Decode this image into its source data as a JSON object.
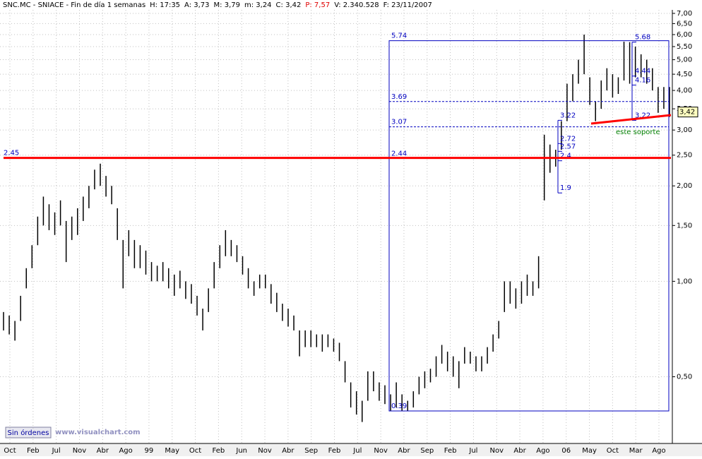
{
  "chart_data": {
    "type": "ohlc",
    "log_scale": true,
    "grid": true,
    "header": [
      "SNC.MC - SNIACE - Fin de día 1 semanas",
      "H: 17:35",
      "A: 3,73",
      "M: 3,79",
      "m: 3,24",
      "C: 3,42",
      "P: 7,57",
      "V: 2.340.528",
      "F: 23/11/2007"
    ],
    "categories": [
      "Oct",
      "Feb",
      "Jul",
      "Nov",
      "Abr",
      "Ago",
      "99",
      "May",
      "Oct",
      "Feb",
      "Jun",
      "Nov",
      "Abr",
      "Sep",
      "Feb",
      "Jul",
      "Nov",
      "Abr",
      "Sep",
      "Feb",
      "Jul",
      "Nov",
      "Abr",
      "Ago",
      "06",
      "May",
      "Oct",
      "Mar",
      "Ago"
    ],
    "high": [
      0.8,
      0.78,
      0.75,
      0.9,
      1.1,
      1.3,
      1.6,
      1.85,
      1.75,
      1.65,
      1.8,
      1.55,
      1.6,
      1.7,
      1.85,
      2.0,
      2.25,
      2.35,
      2.15,
      2.0,
      1.7,
      1.35,
      1.45,
      1.35,
      1.3,
      1.25,
      1.15,
      1.12,
      1.15,
      1.1,
      1.05,
      1.08,
      1.0,
      0.98,
      0.9,
      0.82,
      0.95,
      1.15,
      1.3,
      1.45,
      1.35,
      1.3,
      1.2,
      1.1,
      1.0,
      1.05,
      1.05,
      0.98,
      0.92,
      0.85,
      0.82,
      0.78,
      0.7,
      0.7,
      0.7,
      0.68,
      0.68,
      0.68,
      0.66,
      0.64,
      0.56,
      0.48,
      0.45,
      0.42,
      0.52,
      0.52,
      0.48,
      0.47,
      0.44,
      0.48,
      0.44,
      0.42,
      0.45,
      0.5,
      0.52,
      0.53,
      0.58,
      0.63,
      0.6,
      0.58,
      0.56,
      0.62,
      0.6,
      0.58,
      0.58,
      0.62,
      0.68,
      0.75,
      1.0,
      1.0,
      0.95,
      1.0,
      1.05,
      1.0,
      1.2,
      2.9,
      2.7,
      2.6,
      3.2,
      4.2,
      4.5,
      5.0,
      6.0,
      4.4,
      3.7,
      4.3,
      4.7,
      4.5,
      4.4,
      5.7,
      5.68,
      5.5,
      5.2,
      5.0,
      4.7,
      4.1,
      4.1,
      4.1
    ],
    "low": [
      0.7,
      0.68,
      0.65,
      0.75,
      0.95,
      1.1,
      1.3,
      1.5,
      1.45,
      1.4,
      1.5,
      1.15,
      1.35,
      1.4,
      1.55,
      1.7,
      1.95,
      2.0,
      1.85,
      1.75,
      1.35,
      0.95,
      1.2,
      1.1,
      1.1,
      1.05,
      1.0,
      1.0,
      1.0,
      0.95,
      0.9,
      0.95,
      0.88,
      0.85,
      0.78,
      0.7,
      0.8,
      0.95,
      1.1,
      1.2,
      1.2,
      1.15,
      1.05,
      0.95,
      0.9,
      0.95,
      0.95,
      0.85,
      0.8,
      0.75,
      0.72,
      0.7,
      0.58,
      0.62,
      0.62,
      0.62,
      0.6,
      0.62,
      0.6,
      0.56,
      0.48,
      0.4,
      0.38,
      0.36,
      0.42,
      0.45,
      0.42,
      0.41,
      0.39,
      0.4,
      0.39,
      0.39,
      0.4,
      0.44,
      0.46,
      0.48,
      0.5,
      0.55,
      0.52,
      0.5,
      0.46,
      0.55,
      0.55,
      0.52,
      0.52,
      0.55,
      0.6,
      0.66,
      0.8,
      0.85,
      0.82,
      0.85,
      0.9,
      0.9,
      0.95,
      1.8,
      2.2,
      2.3,
      2.6,
      3.2,
      3.7,
      4.2,
      4.5,
      3.6,
      3.2,
      3.5,
      4.0,
      3.8,
      3.9,
      4.3,
      4.2,
      4.4,
      4.4,
      4.2,
      4.0,
      3.4,
      3.5,
      3.3
    ],
    "ylim": [
      0.308,
      7.18
    ],
    "yticks": [
      {
        "value": 7,
        "label": "7,00"
      },
      {
        "value": 6.5,
        "label": "6,50"
      },
      {
        "value": 6,
        "label": "6,00"
      },
      {
        "value": 5.5,
        "label": "5,50"
      },
      {
        "value": 5,
        "label": "5,00"
      },
      {
        "value": 4.5,
        "label": "4,50"
      },
      {
        "value": 4,
        "label": "4,00"
      },
      {
        "value": 3.5,
        "label": "3,50"
      },
      {
        "value": 3,
        "label": "3,00"
      },
      {
        "value": 2.5,
        "label": "2,50"
      },
      {
        "value": 2,
        "label": "2,00"
      },
      {
        "value": 1.5,
        "label": "1,50"
      },
      {
        "value": 1,
        "label": "1,00"
      },
      {
        "value": 0.5,
        "label": "0,50"
      }
    ],
    "last_price": {
      "value": 3.42,
      "label": "3,42"
    },
    "support_level": 2.45,
    "fib_levels_1": [
      5.74,
      3.69,
      3.07,
      2.44,
      0.39
    ],
    "fib_levels_2": [
      3.22,
      2.72,
      2.57,
      2.4,
      1.9
    ],
    "fib_levels_3": [
      5.68,
      4.44,
      4.16,
      3.22
    ],
    "support_note": "este soporte",
    "orders_button": "Sin órdenes",
    "watermark": "www.visualchart.com"
  }
}
